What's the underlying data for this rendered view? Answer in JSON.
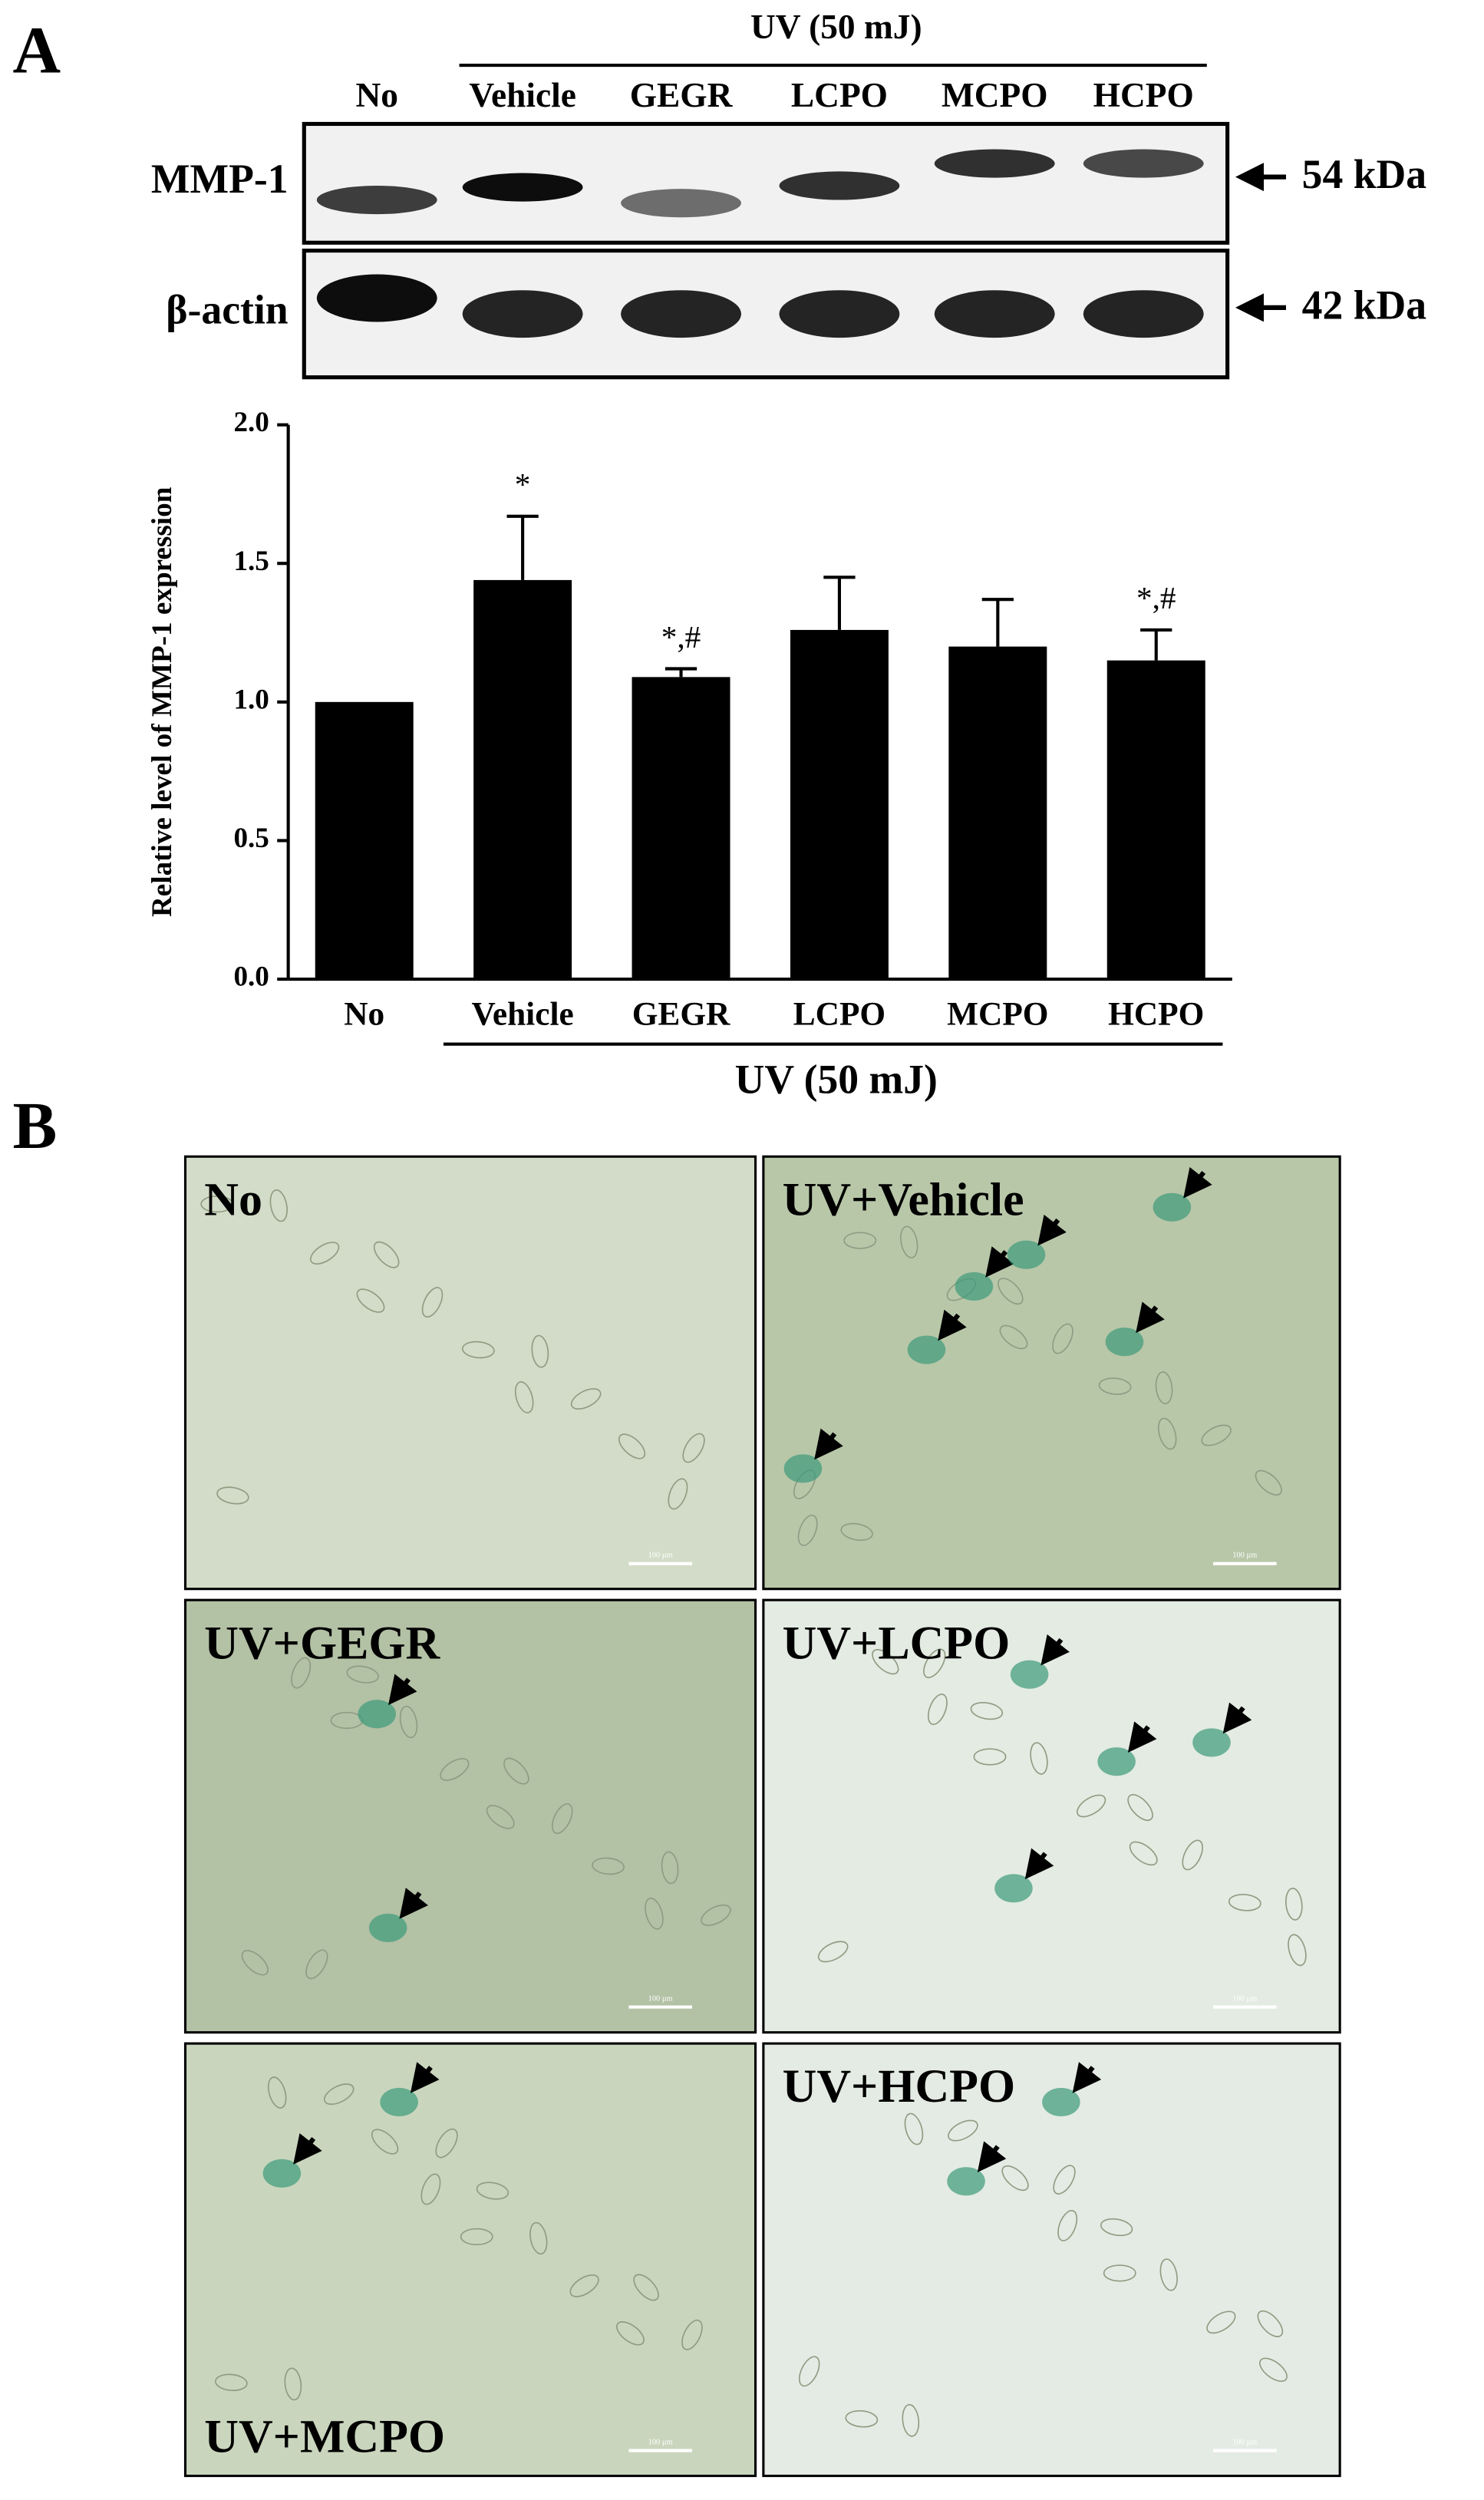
{
  "panel_a": {
    "label": "A",
    "blot": {
      "group_label": "UV (50 mJ)",
      "lanes": [
        "No",
        "Vehicle",
        "GEGR",
        "LCPO",
        "MCPO",
        "HCPO"
      ],
      "rows": [
        {
          "name": "MMP-1",
          "size": "54 kDa"
        },
        {
          "name": "β-actin",
          "size": "42 kDa"
        }
      ]
    }
  },
  "chart_data": {
    "type": "bar",
    "y_label": "Relative level of MMP-1 expression",
    "categories": [
      "No",
      "Vehicle",
      "GEGR",
      "LCPO",
      "MCPO",
      "HCPO"
    ],
    "values": [
      1.0,
      1.44,
      1.09,
      1.26,
      1.2,
      1.15
    ],
    "errors": [
      0,
      0.23,
      0.03,
      0.19,
      0.17,
      0.11
    ],
    "annotations": [
      null,
      "*",
      "*,#",
      null,
      null,
      "*,#"
    ],
    "group_label": "UV (50 mJ)",
    "color": "#000000",
    "ylim": [
      0,
      2
    ],
    "yticks": [
      {
        "value": 0,
        "label": "0.0"
      },
      0.5,
      {
        "value": 1,
        "label": "1.0"
      },
      1.5,
      {
        "value": 2,
        "label": "2.0"
      }
    ]
  },
  "panel_b": {
    "label": "B",
    "scale_bar": "100 µm",
    "images": [
      {
        "label": "No"
      },
      {
        "label": "UV+Vehicle"
      },
      {
        "label": "UV+GEGR"
      },
      {
        "label": "UV+LCPO"
      },
      {
        "label": "UV+MCPO"
      },
      {
        "label": "UV+HCPO"
      }
    ]
  }
}
